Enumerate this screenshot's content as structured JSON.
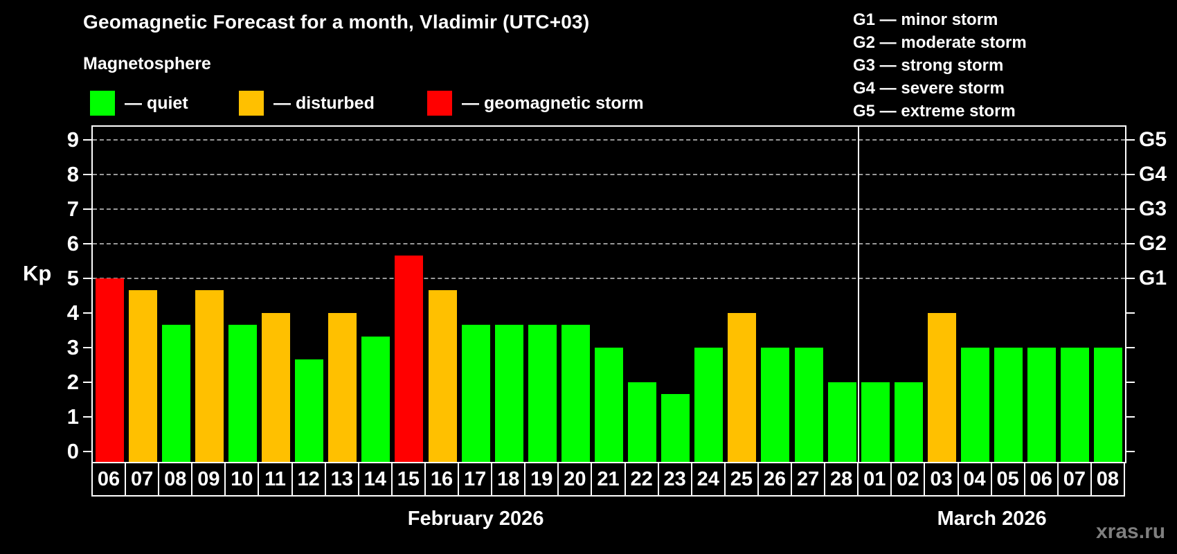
{
  "title": "Geomagnetic Forecast for a month, Vladimir (UTC+03)",
  "legend": {
    "heading": "Magnetosphere",
    "items": [
      {
        "key": "quiet",
        "label": "— quiet",
        "color": "#00ff00"
      },
      {
        "key": "disturbed",
        "label": "— disturbed",
        "color": "#ffc000"
      },
      {
        "key": "storm",
        "label": "— geomagnetic storm",
        "color": "#ff0000"
      }
    ]
  },
  "storm_scale_legend": [
    "G1 — minor storm",
    "G2 — moderate storm",
    "G3 — strong storm",
    "G4 — severe storm",
    "G5 — extreme storm"
  ],
  "watermark": "xras.ru",
  "chart_data": {
    "type": "bar",
    "title": "Geomagnetic Forecast for a month, Vladimir (UTC+03)",
    "xlabel": "",
    "ylabel": "Kp",
    "ylim": [
      0,
      9
    ],
    "axis_display_range": [
      -0.3,
      9.38
    ],
    "yticks": [
      0,
      1,
      2,
      3,
      4,
      5,
      6,
      7,
      8,
      9
    ],
    "gridlines_at": [
      5,
      6,
      7,
      8,
      9
    ],
    "grid": "dashed horizontal at storm levels only",
    "legend_position": "top-left",
    "colors": {
      "quiet": "#00ff00",
      "disturbed": "#ffc000",
      "storm": "#ff0000"
    },
    "right_axis": [
      {
        "kp": 5,
        "label": "G1"
      },
      {
        "kp": 6,
        "label": "G2"
      },
      {
        "kp": 7,
        "label": "G3"
      },
      {
        "kp": 8,
        "label": "G4"
      },
      {
        "kp": 9,
        "label": "G5"
      }
    ],
    "months": [
      {
        "label": "February 2026",
        "days": [
          {
            "day": "06",
            "kp": 5.0,
            "status": "storm"
          },
          {
            "day": "07",
            "kp": 4.67,
            "status": "disturbed"
          },
          {
            "day": "08",
            "kp": 3.67,
            "status": "quiet"
          },
          {
            "day": "09",
            "kp": 4.67,
            "status": "disturbed"
          },
          {
            "day": "10",
            "kp": 3.67,
            "status": "quiet"
          },
          {
            "day": "11",
            "kp": 4.0,
            "status": "disturbed"
          },
          {
            "day": "12",
            "kp": 2.67,
            "status": "quiet"
          },
          {
            "day": "13",
            "kp": 4.0,
            "status": "disturbed"
          },
          {
            "day": "14",
            "kp": 3.33,
            "status": "quiet"
          },
          {
            "day": "15",
            "kp": 5.67,
            "status": "storm"
          },
          {
            "day": "16",
            "kp": 4.67,
            "status": "disturbed"
          },
          {
            "day": "17",
            "kp": 3.67,
            "status": "quiet"
          },
          {
            "day": "18",
            "kp": 3.67,
            "status": "quiet"
          },
          {
            "day": "19",
            "kp": 3.67,
            "status": "quiet"
          },
          {
            "day": "20",
            "kp": 3.67,
            "status": "quiet"
          },
          {
            "day": "21",
            "kp": 3.0,
            "status": "quiet"
          },
          {
            "day": "22",
            "kp": 2.0,
            "status": "quiet"
          },
          {
            "day": "23",
            "kp": 1.67,
            "status": "quiet"
          },
          {
            "day": "24",
            "kp": 3.0,
            "status": "quiet"
          },
          {
            "day": "25",
            "kp": 4.0,
            "status": "disturbed"
          },
          {
            "day": "26",
            "kp": 3.0,
            "status": "quiet"
          },
          {
            "day": "27",
            "kp": 3.0,
            "status": "quiet"
          },
          {
            "day": "28",
            "kp": 2.0,
            "status": "quiet"
          }
        ]
      },
      {
        "label": "March 2026",
        "days": [
          {
            "day": "01",
            "kp": 2.0,
            "status": "quiet"
          },
          {
            "day": "02",
            "kp": 2.0,
            "status": "quiet"
          },
          {
            "day": "03",
            "kp": 4.0,
            "status": "disturbed"
          },
          {
            "day": "04",
            "kp": 3.0,
            "status": "quiet"
          },
          {
            "day": "05",
            "kp": 3.0,
            "status": "quiet"
          },
          {
            "day": "06",
            "kp": 3.0,
            "status": "quiet"
          },
          {
            "day": "07",
            "kp": 3.0,
            "status": "quiet"
          },
          {
            "day": "08",
            "kp": 3.0,
            "status": "quiet"
          }
        ]
      }
    ]
  }
}
